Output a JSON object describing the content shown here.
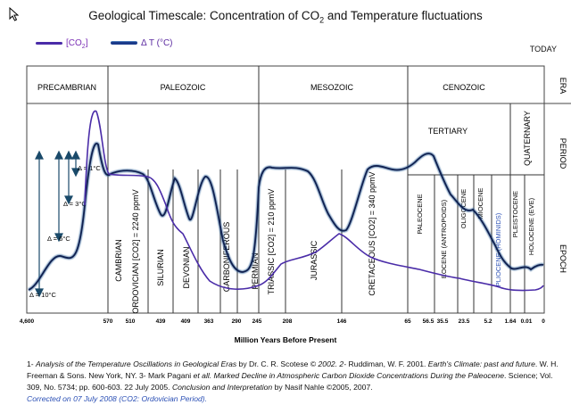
{
  "chart_data": {
    "type": "line",
    "title": "Geological Timescale: Concentration of CO2 and Temperature fluctuations",
    "xlabel": "Million Years Before Present",
    "x_ticks": [
      "4,600",
      "570",
      "510",
      "439",
      "409",
      "363",
      "290",
      "245",
      "208",
      "146",
      "65",
      "56.5",
      "35.5",
      "23.5",
      "5.2",
      "1.64",
      "0.01",
      "0"
    ],
    "series": [
      {
        "name": "[CO2]",
        "color": "#4a2ca8"
      },
      {
        "name": "Δ T (°C)",
        "color": "#1a3a8a"
      }
    ],
    "today_label": "TODAY",
    "row_labels": [
      "ERA",
      "PERIOD",
      "EPOCH"
    ],
    "eras": [
      "PRECAMBRIAN",
      "PALEOZOIC",
      "MESOZOIC",
      "CENOZOIC"
    ],
    "periods": [
      "TERTIARY",
      "QUATERNARY"
    ],
    "period_vertical": [
      "CAMBRIAN",
      "ORDOVICIAN [CO2] = 2240 ppmV",
      "SILURIAN",
      "DEVONIAN",
      "CARBONIFEROUS",
      "PERMIAN",
      "TRIASSIC [CO2] = 210 ppmV",
      "JURASSIC",
      "CRETACEOUS [CO2] = 340 ppmV"
    ],
    "epochs": [
      "PALEOCENE",
      "EOCENE (ANTROPOIDS)",
      "OLIGOCENE",
      "MIOCENE",
      "PLIOCENE (HOMINIDS)",
      "PLEISTOCENE",
      "HOLOCENE (EVE)"
    ],
    "delta_labels": [
      "Δ = 1°C",
      "Δ = 3°C",
      "Δ = 6°C",
      "Δ = 10°C"
    ]
  },
  "title_main": "Geological Timescale: Concentration of CO",
  "title_sub": "2",
  "title_rest": " and Temperature fluctuations",
  "legend_co2_pre": "[CO",
  "legend_co2_sub": "2",
  "legend_co2_post": "]",
  "legend_dt": "Δ T (°C)",
  "caption": {
    "p1": "1- ",
    "p2": "Analysis of the Temperature Oscillations in Geological Eras",
    "p3": " by Dr. C. R. Scotese ",
    "p4": "© 2002. 2- ",
    "p5": "Ruddiman, W. F. 2001. ",
    "p6": "Earth's Climate: past and future",
    "p7": ". W. H. Freeman & Sons. New York, NY. 3- Mark Pagani ",
    "p8": "et all. Marked Decline in Atmospheric Carbon Dioxide Concentrations During the Paleocene",
    "p9": ". Science; Vol. 309, No. 5734; pp. 600-603. 22 July 2005. ",
    "p10": "Conclusion and Interpretation",
    "p11": " by Nasif Nahle ©2005, 2007.",
    "p12": "Corrected on 07 July 2008 (CO2: Ordovician Period)."
  }
}
